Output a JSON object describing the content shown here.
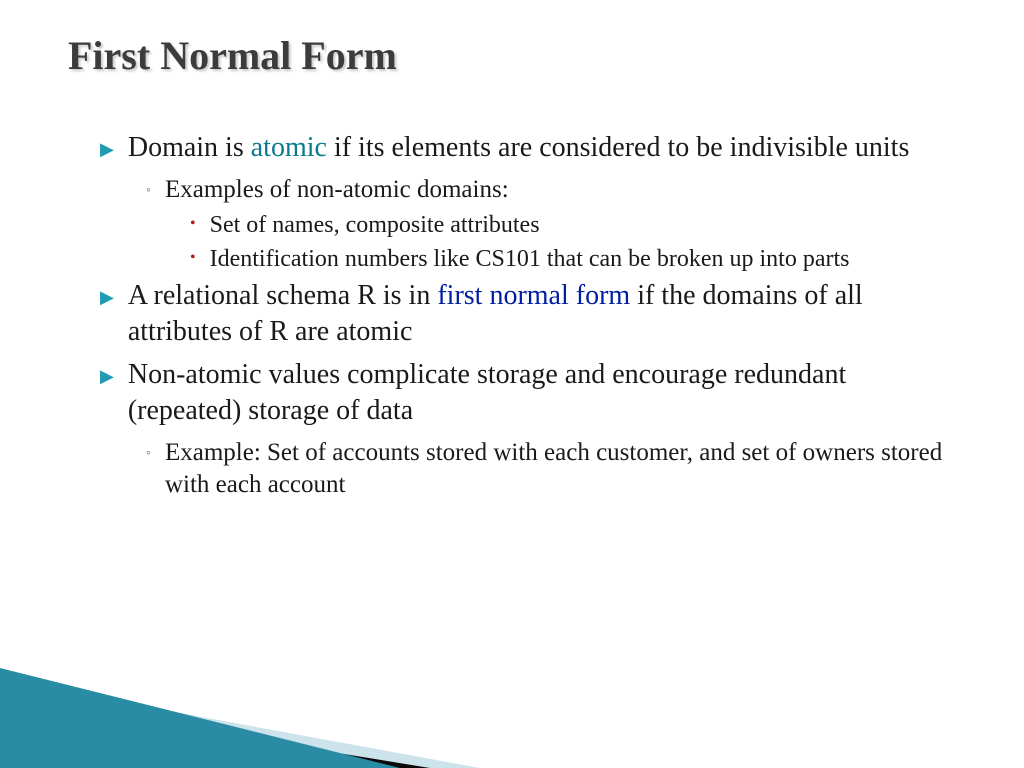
{
  "title": "First Normal Form",
  "colors": {
    "title_text": "#3c3c3c",
    "body_text": "#1a1a1a",
    "bullet_arrow": "#1f9bb3",
    "bullet_circle": "#6a6a6a",
    "bullet_dot": "#b02020",
    "highlight_teal": "#0a7a8f",
    "highlight_blue": "#001ea0",
    "decor_teal": "#2a8ca4",
    "decor_light": "#cde3ec",
    "decor_dark": "#0a0a0a",
    "background": "#ffffff"
  },
  "typography": {
    "title_fontsize": 40,
    "level1_fontsize": 28,
    "level2_fontsize": 25,
    "level3_fontsize": 24,
    "font_family": "Times New Roman"
  },
  "bullets": [
    {
      "level": 1,
      "runs": [
        {
          "t": "Domain is "
        },
        {
          "t": "atomic",
          "style": "teal"
        },
        {
          "t": " if its elements are considered to be indivisible units"
        }
      ]
    },
    {
      "level": 2,
      "runs": [
        {
          "t": "Examples of non-atomic domains:"
        }
      ]
    },
    {
      "level": 3,
      "runs": [
        {
          "t": "Set of names, composite attributes"
        }
      ]
    },
    {
      "level": 3,
      "runs": [
        {
          "t": "Identification numbers like CS101  that can be broken up into parts"
        }
      ]
    },
    {
      "level": 1,
      "runs": [
        {
          "t": "A relational schema R is in "
        },
        {
          "t": "first normal form",
          "style": "blue"
        },
        {
          "t": " if the domains of all attributes of R are atomic"
        }
      ]
    },
    {
      "level": 1,
      "runs": [
        {
          "t": "Non-atomic values complicate storage and encourage redundant (repeated) storage of data"
        }
      ]
    },
    {
      "level": 2,
      "runs": [
        {
          "t": "Example:  Set of accounts stored with each customer, and set of owners stored with each account"
        }
      ]
    }
  ],
  "bullet_glyphs": {
    "1": "▶",
    "2": "◦",
    "3": "•"
  }
}
